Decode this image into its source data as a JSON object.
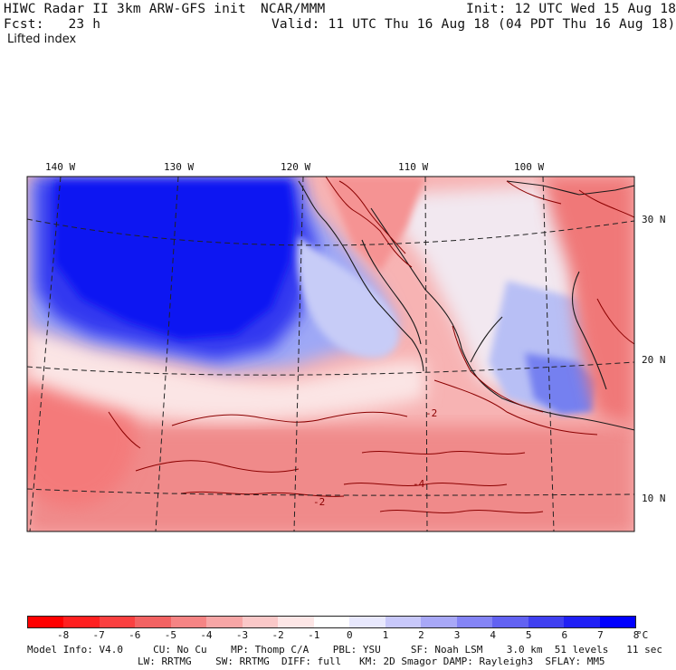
{
  "header": {
    "line1_left": "HIWC Radar II 3km ARW-GFS init",
    "line1_mid": "NCAR/MMM",
    "line1_right": "Init: 12 UTC Wed 15 Aug 18",
    "line2_left": "Fcst:   23 h",
    "line2_right": "Valid: 11 UTC Thu 16 Aug 18 (04 PDT Thu 16 Aug 18)",
    "field": "Lifted index"
  },
  "map": {
    "lon_labels": [
      "140 W",
      "130 W",
      "120 W",
      "110 W",
      "100 W"
    ],
    "lat_labels": [
      "30 N",
      "20 N",
      "10 N"
    ],
    "contour_labels": [
      "-2",
      "-2",
      "-4"
    ]
  },
  "colorbar": {
    "colors": [
      "#ff0000",
      "#ff2020",
      "#fa4040",
      "#f26262",
      "#f58484",
      "#f7a6a6",
      "#fac8c8",
      "#fde6e6",
      "#ffffff",
      "#e8e8fd",
      "#c8c8fa",
      "#a8a8f7",
      "#8484f5",
      "#6262f2",
      "#4040f0",
      "#2020f5",
      "#0000ff"
    ],
    "tick_labels": [
      "-8",
      "-7",
      "-6",
      "-5",
      "-4",
      "-3",
      "-2",
      "-1",
      "0",
      "1",
      "2",
      "3",
      "4",
      "5",
      "6",
      "7",
      "8"
    ],
    "unit": "°C"
  },
  "footer": {
    "line1": "Model Info: V4.0     CU: No Cu    MP: Thomp C/A    PBL: YSU     SF: Noah LSM    3.0 km  51 levels   11 sec",
    "line2": "LW: RRTMG    SW: RRTMG  DIFF: full   KM: 2D Smagor DAMP: Rayleigh3  SFLAY: MM5"
  },
  "colors": {
    "contour": "#8b0000",
    "coast": "#1a1a1a",
    "grid": "#222222"
  }
}
